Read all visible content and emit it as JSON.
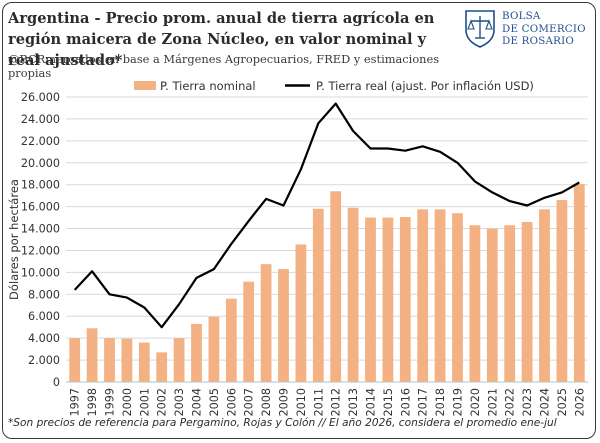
{
  "header": {
    "title": "Argentina - Precio prom. anual de tierra agrícola en región maicera de Zona Núcleo, en valor nominal y real ajustado*",
    "subtitle": "@BCRmercados en base a Márgenes Agropecuarios, FRED y estimaciones propias"
  },
  "logo": {
    "lines": [
      "BOLSA",
      "DE COMERCIO",
      "DE ROSARIO"
    ],
    "icon": "bcr-seal-icon",
    "color": "#1f4e8c"
  },
  "footnote": "*Son precios de referencia para Pergamino, Rojas y Colón // El año 2026, considera el promedio ene-jul",
  "chart_data": {
    "type": "bar",
    "categories": [
      "1997",
      "1998",
      "1999",
      "2000",
      "2001",
      "2002",
      "2003",
      "2004",
      "2005",
      "2006",
      "2007",
      "2008",
      "2009",
      "2010",
      "2011",
      "2012",
      "2013",
      "2014",
      "2015",
      "2016",
      "2017",
      "2018",
      "2019",
      "2020",
      "2021",
      "2022",
      "2023",
      "2024",
      "2025",
      "2026"
    ],
    "series": [
      {
        "name": "P. Tierra nominal",
        "type": "bar",
        "color": "#f4b183",
        "values": [
          4000,
          4900,
          4000,
          3950,
          3600,
          2700,
          4000,
          5300,
          5950,
          7600,
          9150,
          10750,
          10300,
          12550,
          15800,
          17400,
          15900,
          15000,
          15000,
          15050,
          15750,
          15750,
          15400,
          14300,
          14000,
          14300,
          14600,
          15750,
          16600,
          18050
        ]
      },
      {
        "name": "P. Tierra real (ajust. Por inflación USD)",
        "type": "line",
        "color": "#000000",
        "values": [
          8400,
          10100,
          8000,
          7700,
          6800,
          5000,
          7100,
          9500,
          10300,
          12600,
          14700,
          16700,
          16100,
          19400,
          23600,
          25400,
          22900,
          21300,
          21300,
          21100,
          21500,
          21000,
          20000,
          18300,
          17300,
          16500,
          16100,
          16800,
          17300,
          18200
        ]
      }
    ],
    "ylabel": "Dólares por hectárea",
    "xlabel": "",
    "ylim": [
      0,
      26000
    ],
    "yticks": [
      "0",
      "2.000",
      "4.000",
      "6.000",
      "8.000",
      "10.000",
      "12.000",
      "14.000",
      "16.000",
      "18.000",
      "20.000",
      "22.000",
      "24.000",
      "26.000"
    ],
    "grid": true,
    "legend": "top-center"
  }
}
